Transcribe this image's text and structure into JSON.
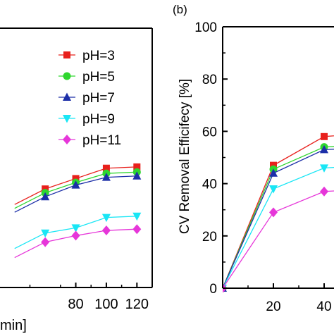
{
  "chart_data": [
    {
      "type": "line",
      "panel_label": "",
      "title": "",
      "xlabel": "min]",
      "ylabel": "",
      "x_ticks": [
        80,
        100,
        120
      ],
      "xlim": [
        0,
        130
      ],
      "ylim": [
        0,
        100
      ],
      "y_ticks": [],
      "legend_placement": "top-right",
      "x": [
        0,
        20,
        40,
        60,
        80,
        100,
        120
      ],
      "series": [
        {
          "name": "pH=3",
          "color": "#e8201c",
          "marker": "square",
          "values": [
            null,
            null,
            null,
            38,
            42,
            46,
            46.5
          ]
        },
        {
          "name": "pH=5",
          "color": "#2fd62f",
          "marker": "circle",
          "values": [
            null,
            null,
            null,
            36.5,
            40.5,
            44,
            44.5
          ]
        },
        {
          "name": "pH=7",
          "color": "#1c2fa8",
          "marker": "triangle-up",
          "values": [
            null,
            null,
            null,
            35,
            39.5,
            42.5,
            43
          ]
        },
        {
          "name": "pH=9",
          "color": "#19e6f5",
          "marker": "triangle-down",
          "values": [
            null,
            null,
            null,
            21,
            23,
            27,
            27.5
          ]
        },
        {
          "name": "pH=11",
          "color": "#e636d9",
          "marker": "diamond",
          "values": [
            null,
            null,
            null,
            17.5,
            20,
            22,
            22.5
          ]
        }
      ]
    },
    {
      "type": "line",
      "panel_label": "(b)",
      "title": "",
      "xlabel": "",
      "ylabel": "CV Removal Efficifecy [%]",
      "x_ticks": [
        20,
        40
      ],
      "x_tick_labels": [
        "20",
        "40"
      ],
      "y_ticks": [
        0,
        20,
        40,
        60,
        80,
        100
      ],
      "xlim": [
        0,
        40
      ],
      "ylim": [
        0,
        100
      ],
      "x": [
        0,
        20,
        40
      ],
      "series": [
        {
          "color": "#e8201c",
          "marker": "square",
          "values": [
            0,
            47,
            58
          ]
        },
        {
          "color": "#2fd62f",
          "marker": "circle",
          "values": [
            0,
            45.5,
            54
          ]
        },
        {
          "color": "#1c2fa8",
          "marker": "triangle-up",
          "values": [
            0,
            44,
            53
          ]
        },
        {
          "color": "#19e6f5",
          "marker": "triangle-down",
          "values": [
            0,
            38,
            46
          ]
        },
        {
          "color": "#e636d9",
          "marker": "diamond",
          "values": [
            0,
            29,
            37
          ]
        }
      ]
    }
  ]
}
